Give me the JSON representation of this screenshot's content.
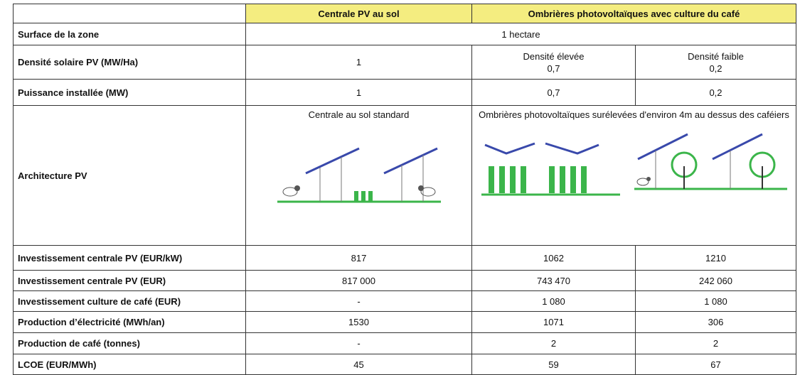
{
  "table": {
    "header": [
      "Centrale PV au sol",
      "Ombrières photovoltaïques avec culture du café"
    ],
    "rows": [
      {
        "label": "Surface de la zone",
        "cells": [
          "1 hectare"
        ]
      },
      {
        "label": "Densité solaire PV (MW/Ha)",
        "cells": [
          "1",
          [
            "Densité élevée",
            "0,7"
          ],
          [
            "Densité faible",
            "0,2"
          ]
        ]
      },
      {
        "label": "Puissance installée (MW)",
        "cells": [
          "1",
          "0,7",
          "0,2"
        ]
      },
      {
        "label": "Architecture PV",
        "cells": [
          "Centrale au sol standard",
          "Ombrières photovoltaïques surélevées d'environ 4m au dessus des caféiers"
        ]
      },
      {
        "label": "Investissement centrale PV (EUR/kW)",
        "cells": [
          "817",
          "1062",
          "1210"
        ]
      },
      {
        "label": "Investissement centrale PV (EUR)",
        "cells": [
          "817 000",
          "743 470",
          "242 060"
        ]
      },
      {
        "label": "Investissement culture de café (EUR)",
        "cells": [
          "-",
          "1 080",
          "1 080"
        ]
      },
      {
        "label": "Production d’électricité (MWh/an)",
        "cells": [
          "1530",
          "1071",
          "306"
        ]
      },
      {
        "label": "Production de café (tonnes)",
        "cells": [
          "-",
          "2",
          "2"
        ]
      },
      {
        "label": "LCOE (EUR/MWh)",
        "cells": [
          "45",
          "59",
          "67"
        ]
      }
    ]
  }
}
